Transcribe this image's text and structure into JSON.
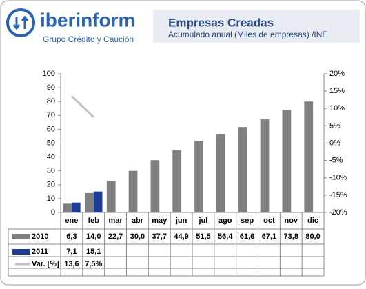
{
  "header": {
    "logo": "iberinform",
    "tagline": "Grupo Crédito y Caución"
  },
  "chart_data": {
    "type": "bar",
    "title": "Empresas Creadas",
    "subtitle": "Acumulado anual (Miles de empresas) /INE",
    "categories": [
      "ene",
      "feb",
      "mar",
      "abr",
      "may",
      "jun",
      "jul",
      "ago",
      "sep",
      "oct",
      "nov",
      "dic"
    ],
    "series": [
      {
        "name": "2010",
        "color": "#808080",
        "values": [
          6.3,
          14.0,
          22.7,
          30.0,
          37.7,
          44.9,
          51.5,
          56.4,
          61.6,
          67.1,
          73.8,
          80.0
        ],
        "value_labels": [
          "6,3",
          "14,0",
          "22,7",
          "30,0",
          "37,7",
          "44,9",
          "51,5",
          "56,4",
          "61,6",
          "67,1",
          "73,8",
          "80,0"
        ]
      },
      {
        "name": "2011",
        "color": "#1f3c94",
        "values": [
          7.1,
          15.1,
          null,
          null,
          null,
          null,
          null,
          null,
          null,
          null,
          null,
          null
        ],
        "value_labels": [
          "7,1",
          "15,1",
          null,
          null,
          null,
          null,
          null,
          null,
          null,
          null,
          null,
          null
        ]
      },
      {
        "name": "Var. [%]",
        "type": "line",
        "axis": "y2",
        "color": "#c0c0c0",
        "values": [
          13.6,
          7.5,
          null,
          null,
          null,
          null,
          null,
          null,
          null,
          null,
          null,
          null
        ],
        "value_labels": [
          "13,6",
          "7,5%",
          null,
          null,
          null,
          null,
          null,
          null,
          null,
          null,
          null,
          null
        ]
      }
    ],
    "ylim": [
      0,
      100
    ],
    "yticks": [
      0,
      10,
      20,
      30,
      40,
      50,
      60,
      70,
      80,
      90,
      100
    ],
    "y2lim": [
      -20,
      20
    ],
    "y2ticks": [
      {
        "value": -20,
        "label": "-20%"
      },
      {
        "value": -15,
        "label": "-15%"
      },
      {
        "value": -10,
        "label": "-10%"
      },
      {
        "value": -5,
        "label": "-5%"
      },
      {
        "value": 0,
        "label": "0%"
      },
      {
        "value": 5,
        "label": "5%"
      },
      {
        "value": 10,
        "label": "10%"
      },
      {
        "value": 15,
        "label": "15%"
      },
      {
        "value": 20,
        "label": "20%"
      }
    ],
    "grid": false
  }
}
